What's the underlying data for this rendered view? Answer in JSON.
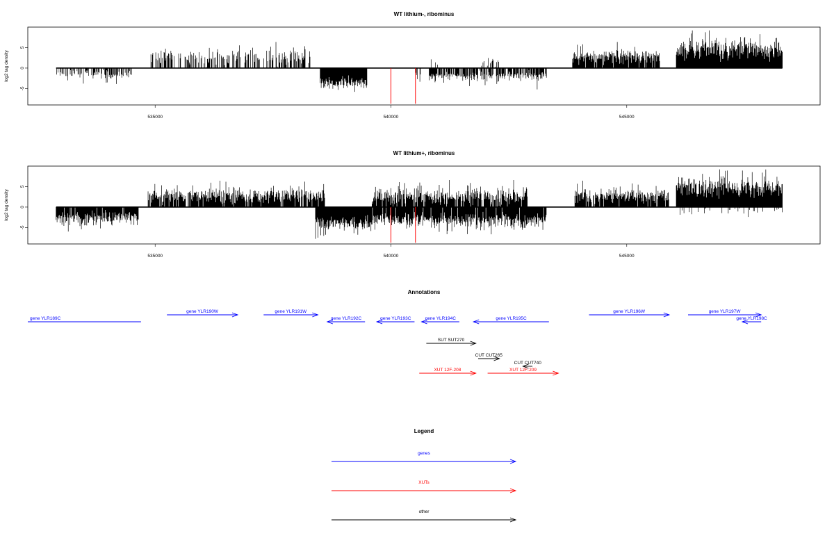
{
  "colors": {
    "gene": "#0000ff",
    "xut": "#ff0000",
    "other": "#000000",
    "marker": "#ff0000"
  },
  "chart_data": [
    {
      "type": "bar",
      "title": "WT lithium-, ribominus",
      "ylabel": "log2 tag density",
      "xlim": [
        532300,
        549100
      ],
      "ylim": [
        -9,
        10
      ],
      "xticks": [
        535000,
        540000,
        545000
      ],
      "xtick_labels": [
        "535000",
        "540000",
        "545000"
      ],
      "yticks": [
        -5,
        0,
        5
      ],
      "ytick_labels": [
        "-5",
        "0",
        "5"
      ],
      "markers_x": [
        540000,
        540520
      ],
      "markers_depth": -8.7,
      "positive_segments": [
        {
          "x": [
            534900,
            538300
          ],
          "mean": 2.6,
          "spread": 1.7,
          "density": 0.45
        },
        {
          "x": [
            540800,
            541000
          ],
          "mean": 1.5,
          "spread": 0.8,
          "density": 0.3
        },
        {
          "x": [
            541900,
            542300
          ],
          "mean": 1.6,
          "spread": 1.0,
          "density": 0.3
        },
        {
          "x": [
            543850,
            545700
          ],
          "mean": 2.9,
          "spread": 1.6,
          "density": 0.95
        },
        {
          "x": [
            546050,
            548300
          ],
          "mean": 4.6,
          "spread": 2.4,
          "density": 1.0
        }
      ],
      "negative_segments": [
        {
          "x": [
            532900,
            534500
          ],
          "mean": 1.4,
          "spread": 1.0,
          "density": 0.55
        },
        {
          "x": [
            538500,
            539500
          ],
          "mean": 3.6,
          "spread": 1.4,
          "density": 1.0
        },
        {
          "x": [
            540500,
            540650
          ],
          "mean": 2.0,
          "spread": 1.0,
          "density": 0.5
        },
        {
          "x": [
            540800,
            543300
          ],
          "mean": 2.0,
          "spread": 1.2,
          "density": 0.75
        }
      ]
    },
    {
      "type": "bar",
      "title": "WT lithium+, ribominus",
      "ylabel": "log2 tag density",
      "xlim": [
        532300,
        549100
      ],
      "ylim": [
        -9,
        10
      ],
      "xticks": [
        535000,
        540000,
        545000
      ],
      "xtick_labels": [
        "535000",
        "540000",
        "545000"
      ],
      "yticks": [
        -5,
        0,
        5
      ],
      "ytick_labels": [
        "-5",
        "0",
        "5"
      ],
      "markers_x": [
        540000,
        540520
      ],
      "markers_depth": -8.7,
      "positive_segments": [
        {
          "x": [
            534850,
            538600
          ],
          "mean": 2.8,
          "spread": 1.7,
          "density": 0.9
        },
        {
          "x": [
            539600,
            542900
          ],
          "mean": 2.6,
          "spread": 1.8,
          "density": 0.9
        },
        {
          "x": [
            543900,
            545900
          ],
          "mean": 2.7,
          "spread": 1.5,
          "density": 0.9
        },
        {
          "x": [
            546050,
            548300
          ],
          "mean": 4.8,
          "spread": 2.2,
          "density": 1.0
        }
      ],
      "negative_segments": [
        {
          "x": [
            532900,
            534650
          ],
          "mean": 2.6,
          "spread": 1.5,
          "density": 0.95
        },
        {
          "x": [
            538400,
            539600
          ],
          "mean": 4.0,
          "spread": 1.6,
          "density": 1.0
        },
        {
          "x": [
            539600,
            543300
          ],
          "mean": 3.2,
          "spread": 1.6,
          "density": 0.95
        },
        {
          "x": [
            546100,
            548300
          ],
          "mean": 1.0,
          "spread": 0.6,
          "density": 0.12
        }
      ]
    }
  ],
  "annotations": {
    "title": "Annotations",
    "features": [
      {
        "label": "gene YLR189C",
        "x1": 532300,
        "x2": 534700,
        "dir": "none",
        "row": 1,
        "kind": "gene"
      },
      {
        "label": "gene YLR190W",
        "x1": 535250,
        "x2": 536750,
        "dir": "right",
        "row": 0,
        "kind": "gene"
      },
      {
        "label": "gene YLR191W",
        "x1": 537300,
        "x2": 538450,
        "dir": "right",
        "row": 0,
        "kind": "gene"
      },
      {
        "label": "gene YLR192C",
        "x1": 538650,
        "x2": 539450,
        "dir": "left",
        "row": 1,
        "kind": "gene"
      },
      {
        "label": "gene YLR193C",
        "x1": 539700,
        "x2": 540500,
        "dir": "left",
        "row": 1,
        "kind": "gene"
      },
      {
        "label": "gene YLR194C",
        "x1": 540650,
        "x2": 541450,
        "dir": "left",
        "row": 1,
        "kind": "gene"
      },
      {
        "label": "gene YLR195C",
        "x1": 541750,
        "x2": 543350,
        "dir": "left",
        "row": 1,
        "kind": "gene"
      },
      {
        "label": "gene YLR196W",
        "x1": 544200,
        "x2": 545900,
        "dir": "right",
        "row": 0,
        "kind": "gene"
      },
      {
        "label": "gene YLR197W",
        "x1": 546300,
        "x2": 547850,
        "dir": "right",
        "row": 0,
        "kind": "gene"
      },
      {
        "label": "gene YLR198C",
        "x1": 547450,
        "x2": 547850,
        "dir": "left",
        "row": 1,
        "kind": "gene"
      },
      {
        "label": "SUT SUT270",
        "x1": 540750,
        "x2": 541800,
        "dir": "right",
        "row": 2,
        "kind": "other"
      },
      {
        "label": "CUT CUT265",
        "x1": 541850,
        "x2": 542300,
        "dir": "right",
        "row": 3,
        "kind": "other"
      },
      {
        "label": "CUT CUT740",
        "x1": 542800,
        "x2": 543000,
        "dir": "left",
        "row": 4,
        "kind": "other"
      },
      {
        "label": "XUT 12F-208",
        "x1": 540600,
        "x2": 541800,
        "dir": "right",
        "row": 5,
        "kind": "xut"
      },
      {
        "label": "XUT 12F-209",
        "x1": 542050,
        "x2": 543550,
        "dir": "right",
        "row": 5,
        "kind": "xut"
      }
    ]
  },
  "legend": {
    "title": "Legend",
    "items": [
      {
        "label": "genes",
        "kind": "gene"
      },
      {
        "label": "XUTs",
        "kind": "xut"
      },
      {
        "label": "other",
        "kind": "other"
      }
    ]
  }
}
